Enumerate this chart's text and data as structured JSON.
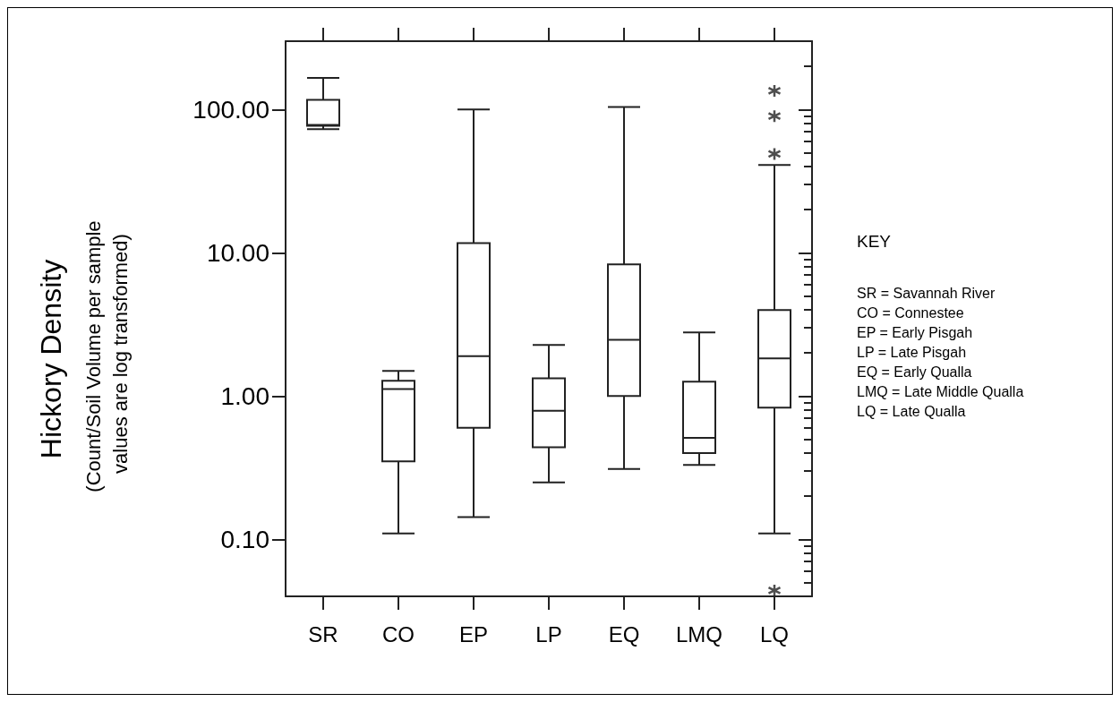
{
  "chart_data": {
    "type": "box",
    "ylabel": "Hickory Density",
    "categories": [
      "SR",
      "CO",
      "EP",
      "LP",
      "EQ",
      "LMQ",
      "LQ"
    ],
    "boxes": [
      {
        "low": 73,
        "q1": 77,
        "median": 78,
        "q3": 117,
        "high": 166
      },
      {
        "low": 0.11,
        "q1": 0.35,
        "median": 1.12,
        "q3": 1.28,
        "high": 1.5
      },
      {
        "low": 0.143,
        "q1": 0.6,
        "median": 1.9,
        "q3": 11.7,
        "high": 100
      },
      {
        "low": 0.25,
        "q1": 0.44,
        "median": 0.79,
        "q3": 1.33,
        "high": 2.27
      },
      {
        "low": 0.31,
        "q1": 1.0,
        "median": 2.47,
        "q3": 8.3,
        "high": 104
      },
      {
        "low": 0.33,
        "q1": 0.4,
        "median": 0.51,
        "q3": 1.26,
        "high": 2.78
      },
      {
        "low": 0.11,
        "q1": 0.83,
        "median": 1.83,
        "q3": 3.98,
        "high": 41,
        "outliers": [
          135,
          90,
          49,
          0.044
        ]
      }
    ],
    "color": "#222222",
    "log": "y",
    "ylim": [
      0.04,
      300
    ],
    "yticks": [
      {
        "value": 0.1,
        "label": "0.10"
      },
      {
        "value": 1,
        "label": "1.00"
      },
      {
        "value": 10,
        "label": "10.00"
      },
      {
        "value": 100,
        "label": "100.00"
      }
    ],
    "annotations": [
      "(Count/Soil Volume per sample values are log transformed)",
      "KEY",
      "SR = Savannah River",
      "CO = Connestee",
      "EP = Early Pisgah",
      "LP = Late Pisgah",
      "EQ = Early Qualla",
      "LMQ = Late Middle Qualla",
      "LQ = Late Qualla"
    ]
  }
}
